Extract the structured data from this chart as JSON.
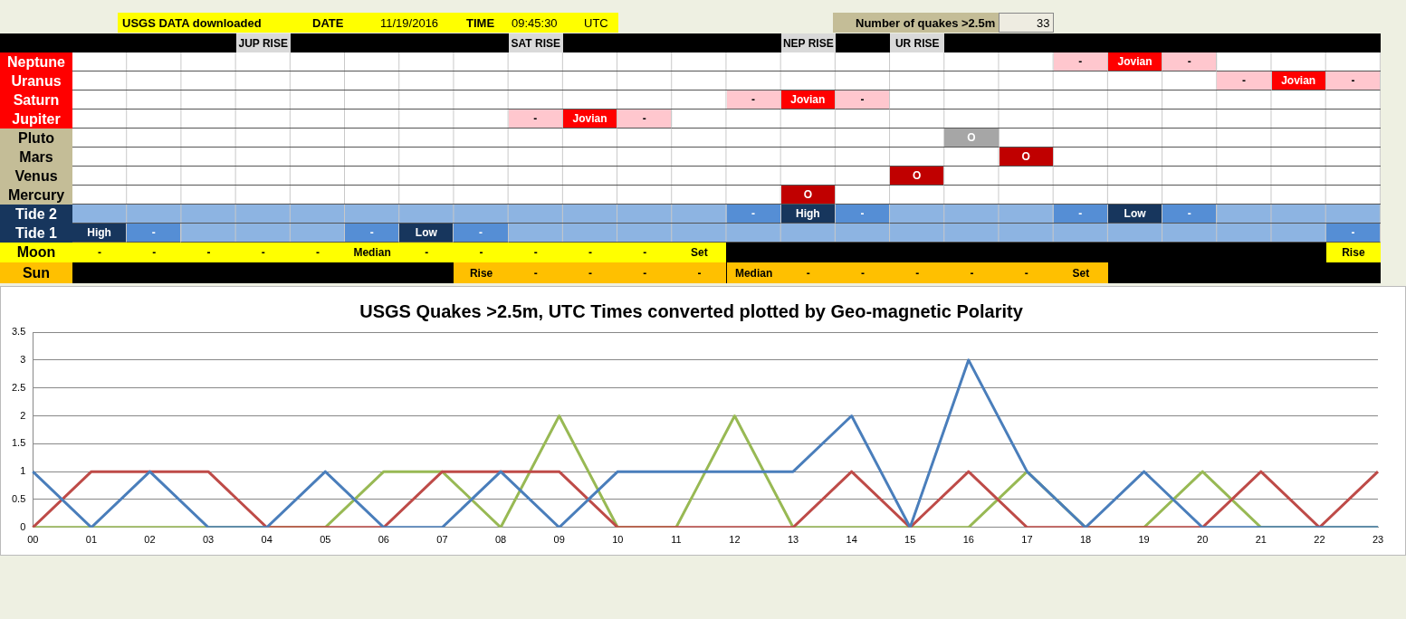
{
  "chart_data": [
    {
      "type": "other",
      "annotations": [
        "USGS DATA downloaded",
        "DATE",
        "11/19/2016",
        "TIME",
        "09:45:30",
        "UTC",
        "Number of quakes >2.5m",
        "33"
      ],
      "categories": [
        null,
        null,
        null,
        null,
        null,
        null,
        null,
        null,
        null,
        null,
        null,
        null,
        null,
        null,
        null,
        null,
        null,
        null,
        null,
        null,
        null,
        null,
        null,
        null
      ],
      "y_categories": [
        null,
        "Neptune",
        "Uranus",
        "Saturn",
        "Jupiter",
        "Pluto",
        "Mars",
        "Venus",
        "Mercury",
        "Tide 2",
        "Tide 1",
        "Moon",
        "Sun"
      ],
      "cell_labels": [
        [
          null,
          null,
          null,
          "JUP RISE",
          null,
          null,
          null,
          null,
          "SAT RISE",
          null,
          null,
          null,
          null,
          "NEP RISE",
          null,
          "UR RISE",
          null,
          null,
          null,
          null,
          null,
          null,
          null,
          null
        ],
        [
          null,
          null,
          null,
          null,
          null,
          null,
          null,
          null,
          null,
          null,
          null,
          null,
          null,
          null,
          null,
          null,
          null,
          null,
          "-",
          "Jovian",
          "-",
          null,
          null,
          null
        ],
        [
          null,
          null,
          null,
          null,
          null,
          null,
          null,
          null,
          null,
          null,
          null,
          null,
          null,
          null,
          null,
          null,
          null,
          null,
          null,
          null,
          null,
          "-",
          "Jovian",
          "-"
        ],
        [
          null,
          null,
          null,
          null,
          null,
          null,
          null,
          null,
          null,
          null,
          null,
          null,
          "-",
          "Jovian",
          "-",
          null,
          null,
          null,
          null,
          null,
          null,
          null,
          null,
          null
        ],
        [
          null,
          null,
          null,
          null,
          null,
          null,
          null,
          null,
          "-",
          "Jovian",
          "-",
          null,
          null,
          null,
          null,
          null,
          null,
          null,
          null,
          null,
          null,
          null,
          null,
          null
        ],
        [
          null,
          null,
          null,
          null,
          null,
          null,
          null,
          null,
          null,
          null,
          null,
          null,
          null,
          null,
          null,
          null,
          "O",
          null,
          null,
          null,
          null,
          null,
          null,
          null
        ],
        [
          null,
          null,
          null,
          null,
          null,
          null,
          null,
          null,
          null,
          null,
          null,
          null,
          null,
          null,
          null,
          null,
          null,
          "O",
          null,
          null,
          null,
          null,
          null,
          null
        ],
        [
          null,
          null,
          null,
          null,
          null,
          null,
          null,
          null,
          null,
          null,
          null,
          null,
          null,
          null,
          null,
          "O",
          null,
          null,
          null,
          null,
          null,
          null,
          null,
          null
        ],
        [
          null,
          null,
          null,
          null,
          null,
          null,
          null,
          null,
          null,
          null,
          null,
          null,
          null,
          "O",
          null,
          null,
          null,
          null,
          null,
          null,
          null,
          null,
          null,
          null
        ],
        [
          null,
          null,
          null,
          null,
          null,
          null,
          null,
          null,
          null,
          null,
          null,
          null,
          "-",
          "High",
          "-",
          null,
          null,
          null,
          "-",
          "Low",
          "-",
          null,
          null,
          null
        ],
        [
          "High",
          "-",
          null,
          null,
          null,
          "-",
          "Low",
          "-",
          null,
          null,
          null,
          null,
          null,
          null,
          null,
          null,
          null,
          null,
          null,
          null,
          null,
          null,
          null,
          "-"
        ],
        [
          "-",
          "-",
          "-",
          "-",
          "-",
          "Median",
          "-",
          "-",
          "-",
          "-",
          "-",
          "Set",
          null,
          null,
          null,
          null,
          null,
          null,
          null,
          null,
          null,
          null,
          null,
          "Rise"
        ],
        [
          null,
          null,
          null,
          null,
          null,
          null,
          null,
          "Rise",
          "-",
          "-",
          "-",
          "-",
          "Median",
          "-",
          "-",
          "-",
          "-",
          "-",
          "Set",
          null,
          null,
          null,
          null,
          null
        ]
      ]
    },
    {
      "type": "line",
      "title": "USGS Quakes >2.5m, UTC Times converted plotted by Geo-magnetic Polarity",
      "categories": [
        "00",
        "01",
        "02",
        "03",
        "04",
        "05",
        "06",
        "07",
        "08",
        "09",
        "10",
        "11",
        "12",
        "13",
        "14",
        "15",
        "16",
        "17",
        "18",
        "19",
        "20",
        "21",
        "22",
        "23"
      ],
      "series": [
        {
          "color": "#4a7ebb",
          "values": [
            1,
            0,
            1,
            0,
            0,
            1,
            0,
            0,
            1,
            0,
            1,
            1,
            1,
            1,
            2,
            0,
            3,
            1,
            0,
            1,
            0,
            0,
            0,
            0
          ]
        },
        {
          "color": "#be4b48",
          "values": [
            0,
            1,
            1,
            1,
            0,
            0,
            0,
            1,
            1,
            1,
            0,
            0,
            0,
            0,
            1,
            0,
            1,
            0,
            0,
            0,
            0,
            1,
            0,
            1
          ]
        },
        {
          "color": "#98b954",
          "values": [
            0,
            0,
            0,
            0,
            0,
            0,
            1,
            1,
            0,
            2,
            0,
            0,
            2,
            0,
            0,
            0,
            0,
            1,
            0,
            0,
            1,
            0,
            0,
            0
          ]
        }
      ],
      "ylim": [
        0,
        3.5
      ],
      "yticks": [
        0,
        0.5,
        1,
        1.5,
        2,
        2.5,
        3,
        3.5
      ],
      "grid": "y",
      "legend": false,
      "marker": "none"
    }
  ]
}
